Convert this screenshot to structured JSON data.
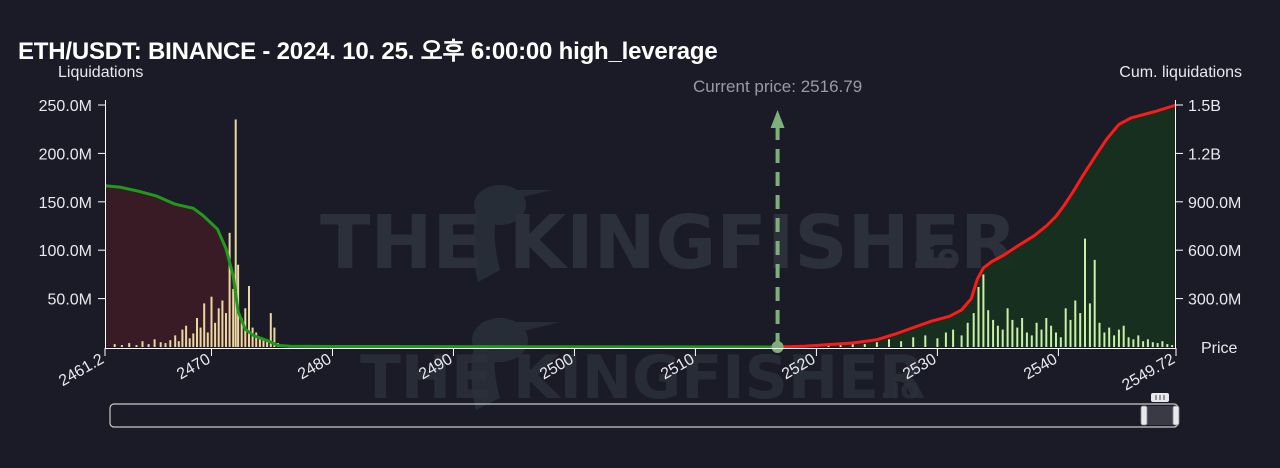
{
  "title": "ETH/USDT: BINANCE - 2024. 10. 25. 오후 6:00:00 high_leverage",
  "watermark": {
    "brand": "THE KINGFISHER",
    "suffix": ".io"
  },
  "colors": {
    "background": "#1b1b27",
    "bars": "#c9f0a6",
    "bars_left": "#e8d9a0",
    "cum_short": "#ff1a1a",
    "cum_long": "#1f9a1f",
    "fill_left": "#3a1b24",
    "fill_right": "#17301f",
    "current_price_marker": "#7fb07a"
  },
  "chart_data": {
    "type": "bar",
    "title": "ETH/USDT: BINANCE - 2024. 10. 25. 오후 6:00:00 high_leverage",
    "xlabel": "Price",
    "ylabel": "Liquidations",
    "y2label": "Cum. liquidations",
    "xlim": [
      2461.2,
      2549.72
    ],
    "ylim": [
      0,
      250000000
    ],
    "y2lim": [
      0,
      1500000000
    ],
    "x_ticks": [
      "2461.2",
      "2470",
      "2480",
      "2490",
      "2500",
      "2510",
      "2520",
      "2530",
      "2540",
      "2549.72"
    ],
    "x_tick_values": [
      2461.2,
      2470,
      2480,
      2490,
      2500,
      2510,
      2520,
      2530,
      2540,
      2549.72
    ],
    "y_ticks": [
      "50.0M",
      "100.0M",
      "150.0M",
      "200.0M",
      "250.0M"
    ],
    "y_tick_values": [
      50000000,
      100000000,
      150000000,
      200000000,
      250000000
    ],
    "y2_ticks": [
      "300.0M",
      "600.0M",
      "900.0M",
      "1.2B",
      "1.5B"
    ],
    "y2_tick_values": [
      300000000,
      600000000,
      900000000,
      1200000000,
      1500000000
    ],
    "current_price": 2516.79,
    "current_price_label": "Current price: 2516.79",
    "series": [
      {
        "kind": "bars",
        "points": [
          [
            2462.0,
            3
          ],
          [
            2462.6,
            2
          ],
          [
            2463.2,
            4
          ],
          [
            2463.8,
            2
          ],
          [
            2464.3,
            6
          ],
          [
            2464.8,
            3
          ],
          [
            2465.3,
            8
          ],
          [
            2465.8,
            5
          ],
          [
            2466.2,
            4
          ],
          [
            2466.6,
            7
          ],
          [
            2467.0,
            12
          ],
          [
            2467.3,
            6
          ],
          [
            2467.6,
            18
          ],
          [
            2467.9,
            22
          ],
          [
            2468.2,
            9
          ],
          [
            2468.5,
            14
          ],
          [
            2468.8,
            30
          ],
          [
            2469.1,
            20
          ],
          [
            2469.4,
            45
          ],
          [
            2469.7,
            15
          ],
          [
            2470.0,
            52
          ],
          [
            2470.3,
            25
          ],
          [
            2470.6,
            40
          ],
          [
            2470.9,
            48
          ],
          [
            2471.2,
            35
          ],
          [
            2471.5,
            118
          ],
          [
            2471.8,
            60
          ],
          [
            2472.0,
            235
          ],
          [
            2472.2,
            85
          ],
          [
            2472.5,
            30
          ],
          [
            2472.8,
            40
          ],
          [
            2473.1,
            63
          ],
          [
            2473.4,
            20
          ],
          [
            2473.7,
            15
          ],
          [
            2474.0,
            10
          ],
          [
            2474.3,
            8
          ],
          [
            2474.6,
            6
          ],
          [
            2474.9,
            35
          ],
          [
            2475.2,
            20
          ],
          [
            2475.5,
            4
          ],
          [
            2476.0,
            2
          ],
          [
            2477.0,
            1
          ],
          [
            2478.0,
            1
          ],
          [
            2519.0,
            1
          ],
          [
            2520.0,
            2
          ],
          [
            2521.0,
            3
          ],
          [
            2522.0,
            2
          ],
          [
            2523.0,
            4
          ],
          [
            2524.0,
            3
          ],
          [
            2525.0,
            5
          ],
          [
            2526.0,
            8
          ],
          [
            2527.0,
            6
          ],
          [
            2528.0,
            10
          ],
          [
            2529.0,
            12
          ],
          [
            2530.0,
            9
          ],
          [
            2530.7,
            15
          ],
          [
            2531.3,
            18
          ],
          [
            2532.0,
            12
          ],
          [
            2532.5,
            25
          ],
          [
            2533.0,
            35
          ],
          [
            2533.4,
            62
          ],
          [
            2533.8,
            75
          ],
          [
            2534.2,
            38
          ],
          [
            2534.6,
            28
          ],
          [
            2535.0,
            22
          ],
          [
            2535.4,
            18
          ],
          [
            2535.8,
            40
          ],
          [
            2536.2,
            28
          ],
          [
            2536.6,
            20
          ],
          [
            2537.0,
            30
          ],
          [
            2537.4,
            15
          ],
          [
            2537.8,
            12
          ],
          [
            2538.2,
            25
          ],
          [
            2538.6,
            18
          ],
          [
            2539.0,
            30
          ],
          [
            2539.4,
            22
          ],
          [
            2539.8,
            15
          ],
          [
            2540.2,
            10
          ],
          [
            2540.6,
            40
          ],
          [
            2541.0,
            28
          ],
          [
            2541.4,
            48
          ],
          [
            2541.8,
            35
          ],
          [
            2542.2,
            112
          ],
          [
            2542.6,
            45
          ],
          [
            2543.0,
            90
          ],
          [
            2543.4,
            25
          ],
          [
            2543.8,
            15
          ],
          [
            2544.2,
            20
          ],
          [
            2544.6,
            12
          ],
          [
            2545.0,
            18
          ],
          [
            2545.4,
            22
          ],
          [
            2545.8,
            10
          ],
          [
            2546.2,
            8
          ],
          [
            2546.6,
            12
          ],
          [
            2547.0,
            6
          ],
          [
            2547.4,
            8
          ],
          [
            2547.8,
            5
          ],
          [
            2548.2,
            4
          ],
          [
            2548.6,
            6
          ],
          [
            2549.0,
            3
          ],
          [
            2549.4,
            2
          ]
        ]
      },
      {
        "kind": "cumulative_long",
        "points": [
          [
            2461.2,
            1000
          ],
          [
            2462.5,
            990
          ],
          [
            2464.0,
            965
          ],
          [
            2465.5,
            935
          ],
          [
            2467.0,
            885
          ],
          [
            2468.5,
            860
          ],
          [
            2469.3,
            815
          ],
          [
            2470.5,
            730
          ],
          [
            2471.2,
            610
          ],
          [
            2471.8,
            440
          ],
          [
            2472.2,
            220
          ],
          [
            2472.8,
            110
          ],
          [
            2473.5,
            70
          ],
          [
            2474.6,
            40
          ],
          [
            2475.5,
            10
          ],
          [
            2476.5,
            5
          ],
          [
            2480.0,
            3
          ],
          [
            2516.79,
            0
          ]
        ]
      },
      {
        "kind": "cumulative_short",
        "points": [
          [
            2516.79,
            0
          ],
          [
            2519.0,
            5
          ],
          [
            2521.0,
            15
          ],
          [
            2523.0,
            25
          ],
          [
            2525.0,
            45
          ],
          [
            2526.5,
            80
          ],
          [
            2528.0,
            120
          ],
          [
            2529.5,
            160
          ],
          [
            2531.0,
            190
          ],
          [
            2532.0,
            230
          ],
          [
            2532.8,
            300
          ],
          [
            2533.3,
            420
          ],
          [
            2533.8,
            490
          ],
          [
            2534.5,
            530
          ],
          [
            2535.5,
            570
          ],
          [
            2536.5,
            620
          ],
          [
            2538.0,
            690
          ],
          [
            2539.0,
            750
          ],
          [
            2539.8,
            810
          ],
          [
            2540.5,
            880
          ],
          [
            2541.2,
            960
          ],
          [
            2542.0,
            1060
          ],
          [
            2542.6,
            1130
          ],
          [
            2543.2,
            1200
          ],
          [
            2544.0,
            1290
          ],
          [
            2545.0,
            1380
          ],
          [
            2546.0,
            1420
          ],
          [
            2547.0,
            1440
          ],
          [
            2548.0,
            1460
          ],
          [
            2549.72,
            1500
          ]
        ]
      }
    ],
    "series_units": {
      "bars": "M",
      "cumulative_long": "M",
      "cumulative_short": "M"
    }
  }
}
